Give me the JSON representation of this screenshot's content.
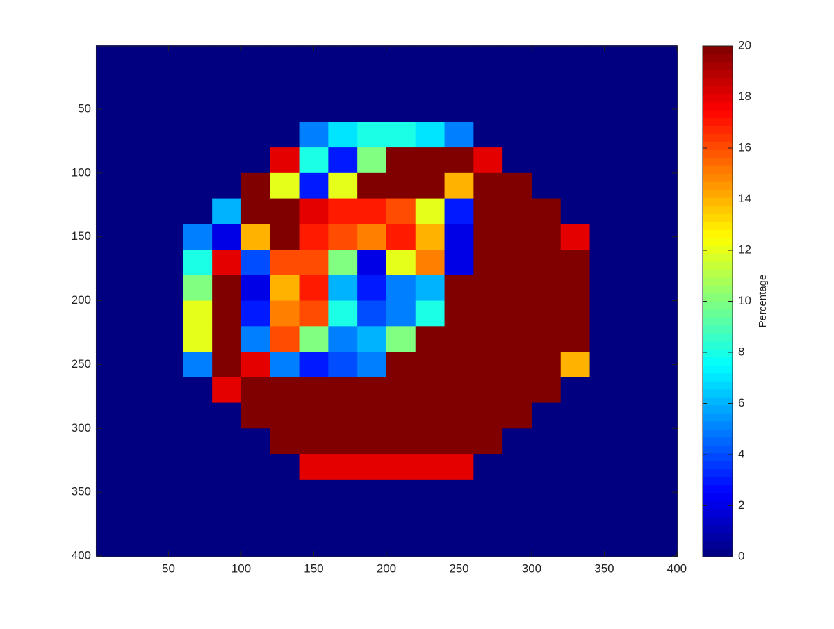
{
  "chart_data": {
    "type": "heatmap",
    "colormap": "jet",
    "x": [
      10,
      30,
      50,
      70,
      90,
      110,
      130,
      150,
      170,
      190,
      210,
      230,
      250,
      270,
      290,
      310,
      330,
      350,
      370,
      390
    ],
    "y": [
      10,
      30,
      50,
      70,
      90,
      110,
      130,
      150,
      170,
      190,
      210,
      230,
      250,
      270,
      290,
      310,
      330,
      350,
      370,
      390
    ],
    "values": [
      [
        0,
        0,
        0,
        0,
        0,
        0,
        0,
        0,
        0,
        0,
        0,
        0,
        0,
        0,
        0,
        0,
        0,
        0,
        0,
        0
      ],
      [
        0,
        0,
        0,
        0,
        0,
        0,
        0,
        0,
        0,
        0,
        0,
        0,
        0,
        0,
        0,
        0,
        0,
        0,
        0,
        0
      ],
      [
        0,
        0,
        0,
        0,
        0,
        0,
        0,
        0,
        0,
        0,
        0,
        0,
        0,
        0,
        0,
        0,
        0,
        0,
        0,
        0
      ],
      [
        0,
        0,
        0,
        0,
        0,
        0,
        0,
        5,
        7,
        8,
        8,
        7,
        5,
        0,
        0,
        0,
        0,
        0,
        0,
        0
      ],
      [
        0,
        0,
        0,
        0,
        0,
        0,
        18,
        8,
        3,
        10,
        20,
        20,
        20,
        18,
        0,
        0,
        0,
        0,
        0,
        0
      ],
      [
        0,
        0,
        0,
        0,
        0,
        20,
        12,
        3,
        12,
        20,
        20,
        20,
        14,
        20,
        20,
        0,
        0,
        0,
        0,
        0
      ],
      [
        0,
        0,
        0,
        0,
        6,
        20,
        20,
        18,
        17,
        17,
        16,
        12,
        3,
        20,
        20,
        20,
        0,
        0,
        0,
        0
      ],
      [
        0,
        0,
        0,
        5,
        2,
        14,
        20,
        17,
        16,
        15,
        17,
        14,
        2,
        20,
        20,
        20,
        18,
        0,
        0,
        0
      ],
      [
        0,
        0,
        0,
        8,
        18,
        4,
        16,
        16,
        10,
        2,
        12,
        15,
        2,
        20,
        20,
        20,
        20,
        0,
        0,
        0
      ],
      [
        0,
        0,
        0,
        10,
        20,
        2,
        14,
        17,
        6,
        3,
        5,
        6,
        20,
        20,
        20,
        20,
        20,
        0,
        0,
        0
      ],
      [
        0,
        0,
        0,
        12,
        20,
        3,
        15,
        16,
        8,
        4,
        5,
        8,
        20,
        20,
        20,
        20,
        20,
        0,
        0,
        0
      ],
      [
        0,
        0,
        0,
        12,
        20,
        5,
        16,
        10,
        5,
        6,
        10,
        20,
        20,
        20,
        20,
        20,
        20,
        0,
        0,
        0
      ],
      [
        0,
        0,
        0,
        5,
        20,
        18,
        5,
        3,
        4,
        5,
        20,
        20,
        20,
        20,
        20,
        20,
        14,
        0,
        0,
        0
      ],
      [
        0,
        0,
        0,
        0,
        18,
        20,
        20,
        20,
        20,
        20,
        20,
        20,
        20,
        20,
        20,
        20,
        0,
        0,
        0,
        0
      ],
      [
        0,
        0,
        0,
        0,
        0,
        20,
        20,
        20,
        20,
        20,
        20,
        20,
        20,
        20,
        20,
        0,
        0,
        0,
        0,
        0
      ],
      [
        0,
        0,
        0,
        0,
        0,
        0,
        20,
        20,
        20,
        20,
        20,
        20,
        20,
        20,
        0,
        0,
        0,
        0,
        0,
        0
      ],
      [
        0,
        0,
        0,
        0,
        0,
        0,
        0,
        18,
        18,
        18,
        18,
        18,
        18,
        0,
        0,
        0,
        0,
        0,
        0,
        0
      ],
      [
        0,
        0,
        0,
        0,
        0,
        0,
        0,
        0,
        0,
        0,
        0,
        0,
        0,
        0,
        0,
        0,
        0,
        0,
        0,
        0
      ],
      [
        0,
        0,
        0,
        0,
        0,
        0,
        0,
        0,
        0,
        0,
        0,
        0,
        0,
        0,
        0,
        0,
        0,
        0,
        0,
        0
      ],
      [
        0,
        0,
        0,
        0,
        0,
        0,
        0,
        0,
        0,
        0,
        0,
        0,
        0,
        0,
        0,
        0,
        0,
        0,
        0,
        0
      ]
    ],
    "xlim": [
      0.5,
      400.5
    ],
    "ylim": [
      0.5,
      400.5
    ],
    "y_reversed": true,
    "xticks": [
      50,
      100,
      150,
      200,
      250,
      300,
      350,
      400
    ],
    "yticks": [
      50,
      100,
      150,
      200,
      250,
      300,
      350,
      400
    ],
    "clim": [
      0,
      20
    ],
    "cticks": [
      0,
      2,
      4,
      6,
      8,
      10,
      12,
      14,
      16,
      18,
      20
    ],
    "colorbar_label": "Percentage"
  }
}
